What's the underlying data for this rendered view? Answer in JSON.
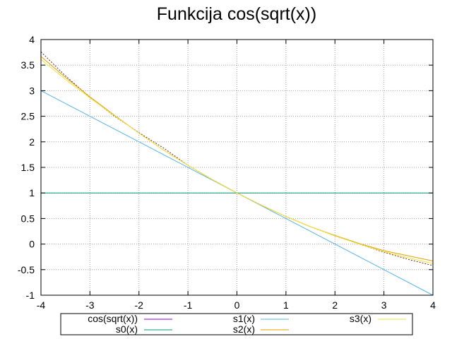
{
  "chart_data": {
    "type": "line",
    "title": "Funkcija cos(sqrt(x))",
    "xlabel": "",
    "ylabel": "",
    "xlim": [
      -4,
      4
    ],
    "ylim": [
      -1,
      4
    ],
    "x_ticks": [
      "-4",
      "-3",
      "-2",
      "-1",
      "0",
      "1",
      "2",
      "3",
      "4"
    ],
    "y_ticks": [
      "-1",
      "-0.5",
      "0",
      "0.5",
      "1",
      "1.5",
      "2",
      "2.5",
      "3",
      "3.5",
      "4"
    ],
    "grid": true,
    "legend_position": "bottom",
    "series": [
      {
        "name": "cos(sqrt(x))",
        "color": "#9400d3",
        "x": [
          -4,
          -3.5,
          -3,
          -2.5,
          -2,
          -1.5,
          -1,
          -0.5,
          0,
          0.5,
          1,
          1.5,
          2,
          2.5,
          3,
          3.5,
          4
        ],
        "y": [
          3.76,
          3.29,
          2.87,
          2.5,
          2.18,
          1.88,
          1.54,
          1.26,
          1.0,
          0.76,
          0.54,
          0.34,
          0.16,
          0.0,
          -0.16,
          -0.3,
          -0.42
        ]
      },
      {
        "name": "s0(x)",
        "color": "#009e73",
        "x": [
          -4,
          4
        ],
        "y": [
          1,
          1
        ]
      },
      {
        "name": "s1(x)",
        "color": "#56b4e9",
        "x": [
          -4,
          4
        ],
        "y": [
          3,
          -1
        ]
      },
      {
        "name": "s2(x)",
        "color": "#e69f00",
        "x": [
          -4,
          -3.5,
          -3,
          -2.5,
          -2,
          -1.5,
          -1,
          -0.5,
          0,
          0.5,
          1,
          1.5,
          2,
          2.5,
          3,
          3.5,
          4
        ],
        "y": [
          3.67,
          3.26,
          2.88,
          2.52,
          2.17,
          1.84,
          1.54,
          1.26,
          1.0,
          0.76,
          0.54,
          0.34,
          0.17,
          0.01,
          -0.13,
          -0.23,
          -0.33
        ]
      },
      {
        "name": "s3(x)",
        "color": "#f0e442",
        "x": [
          -4,
          -3.5,
          -3,
          -2.5,
          -2,
          -1.5,
          -1,
          -0.5,
          0,
          0.5,
          1,
          1.5,
          2,
          2.5,
          3,
          3.5,
          4
        ],
        "y": [
          3.61,
          3.22,
          2.86,
          2.51,
          2.17,
          1.84,
          1.54,
          1.26,
          1.0,
          0.76,
          0.54,
          0.34,
          0.16,
          0.0,
          -0.15,
          -0.27,
          -0.38
        ]
      }
    ]
  }
}
